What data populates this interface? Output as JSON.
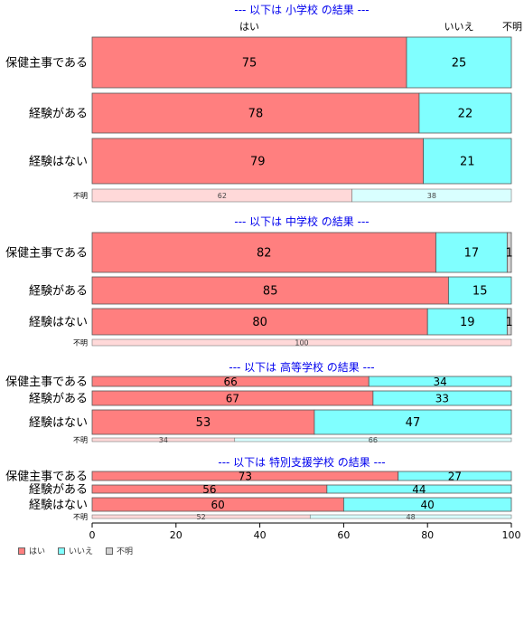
{
  "chart_data": {
    "type": "bar",
    "orientation": "horizontal-stacked-100",
    "column_headers": {
      "yes": "はい",
      "no": "いいえ",
      "unknown": "不明"
    },
    "x_ticks": [
      0,
      20,
      40,
      60,
      80,
      100
    ],
    "xlim": [
      0,
      100
    ],
    "series_colors": {
      "yes": "#ff7f7f",
      "no": "#80ffff",
      "unknown": "#d3d3d3"
    },
    "unknown_row_colors": {
      "yes": "#ffd9d9",
      "no": "#d9ffff"
    },
    "groups": [
      {
        "title": "--- 以下は 小学校 の結果 ---",
        "rows": [
          {
            "label": "保健主事である",
            "yes": 75,
            "no": 25,
            "unknown": 0
          },
          {
            "label": "経験がある",
            "yes": 78,
            "no": 22,
            "unknown": 0
          },
          {
            "label": "経験はない",
            "yes": 79,
            "no": 21,
            "unknown": 0
          }
        ],
        "unknown_row": {
          "label": "不明",
          "yes": 62,
          "no": 38,
          "unknown": 0
        }
      },
      {
        "title": "--- 以下は 中学校 の結果 ---",
        "rows": [
          {
            "label": "保健主事である",
            "yes": 82,
            "no": 17,
            "unknown": 1
          },
          {
            "label": "経験がある",
            "yes": 85,
            "no": 15,
            "unknown": 0
          },
          {
            "label": "経験はない",
            "yes": 80,
            "no": 19,
            "unknown": 1
          }
        ],
        "unknown_row": {
          "label": "不明",
          "yes": 100,
          "no": 0,
          "unknown": 0
        }
      },
      {
        "title": "--- 以下は 高等学校 の結果 ---",
        "rows": [
          {
            "label": "保健主事である",
            "yes": 66,
            "no": 34,
            "unknown": 0
          },
          {
            "label": "経験がある",
            "yes": 67,
            "no": 33,
            "unknown": 0
          },
          {
            "label": "経験はない",
            "yes": 53,
            "no": 47,
            "unknown": 0
          }
        ],
        "unknown_row": {
          "label": "不明",
          "yes": 34,
          "no": 66,
          "unknown": 0
        }
      },
      {
        "title": "--- 以下は 特別支援学校 の結果 ---",
        "rows": [
          {
            "label": "保健主事である",
            "yes": 73,
            "no": 27,
            "unknown": 0
          },
          {
            "label": "経験がある",
            "yes": 56,
            "no": 44,
            "unknown": 0
          },
          {
            "label": "経験はない",
            "yes": 60,
            "no": 40,
            "unknown": 0
          }
        ],
        "unknown_row": {
          "label": "不明",
          "yes": 52,
          "no": 48,
          "unknown": 0
        }
      }
    ],
    "legend": [
      {
        "key": "yes",
        "label": "はい"
      },
      {
        "key": "no",
        "label": "いいえ"
      },
      {
        "key": "unknown",
        "label": "不明"
      }
    ]
  }
}
